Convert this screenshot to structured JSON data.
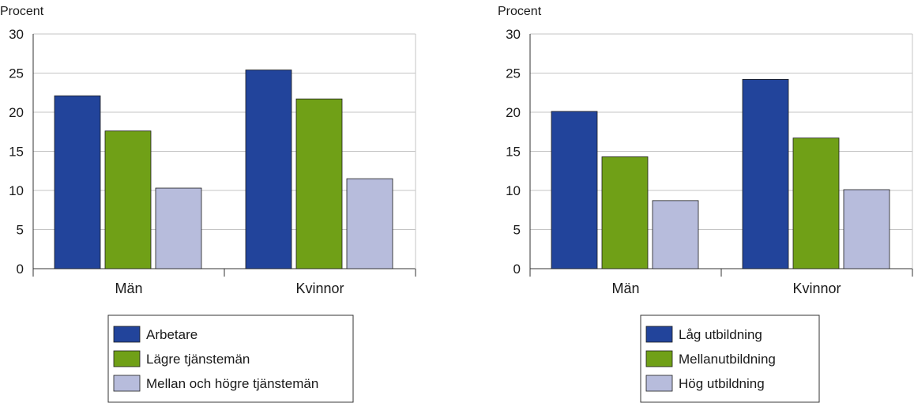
{
  "chart_data": [
    {
      "type": "bar",
      "ylabel": "Procent",
      "ylim": [
        0,
        30
      ],
      "yticks": [
        0,
        5,
        10,
        15,
        20,
        25,
        30
      ],
      "categories": [
        "Män",
        "Kvinnor"
      ],
      "series": [
        {
          "name": "Arbetare",
          "color": "#22449b",
          "values": [
            22.1,
            25.4
          ]
        },
        {
          "name": "Lägre tjänstemän",
          "color": "#70a017",
          "values": [
            17.6,
            21.7
          ]
        },
        {
          "name": "Mellan och högre tjänstemän",
          "color": "#b7bcdc",
          "values": [
            10.3,
            11.5
          ]
        }
      ],
      "grid": true,
      "legend": "bottom"
    },
    {
      "type": "bar",
      "ylabel": "Procent",
      "ylim": [
        0,
        30
      ],
      "yticks": [
        0,
        5,
        10,
        15,
        20,
        25,
        30
      ],
      "categories": [
        "Män",
        "Kvinnor"
      ],
      "series": [
        {
          "name": "Låg utbildning",
          "color": "#22449b",
          "values": [
            20.1,
            24.2
          ]
        },
        {
          "name": "Mellanutbildning",
          "color": "#70a017",
          "values": [
            14.3,
            16.7
          ]
        },
        {
          "name": "Hög utbildning",
          "color": "#b7bcdc",
          "values": [
            8.7,
            10.1
          ]
        }
      ],
      "grid": true,
      "legend": "bottom"
    }
  ]
}
